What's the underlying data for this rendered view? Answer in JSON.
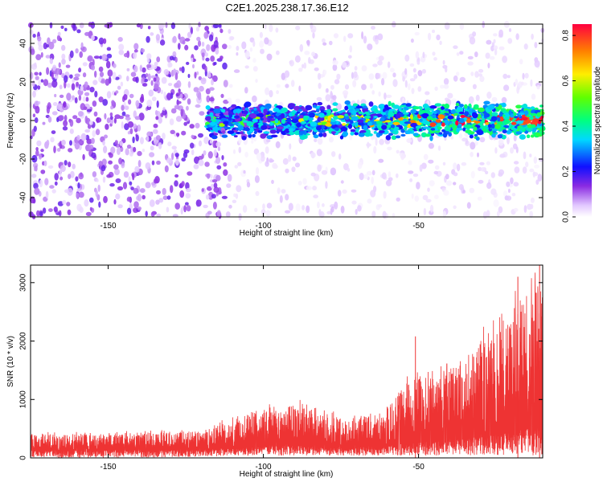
{
  "figure": {
    "title": "C2E1.2025.238.17.36.E12"
  },
  "chart_data": [
    {
      "type": "heatmap",
      "title": "C2E1.2025.238.17.36.E12",
      "xlabel": "Height of straight line (km)",
      "ylabel": "Frequency (Hz)",
      "xlim": [
        -175,
        -10
      ],
      "ylim": [
        -50,
        50
      ],
      "xticks": [
        -150,
        -100,
        -50
      ],
      "yticks": [
        40,
        20,
        0,
        -20,
        -40
      ],
      "colorbar": {
        "label": "Normalized spectral amplitude",
        "range": [
          0,
          0.85
        ],
        "ticks": [
          0.0,
          0.2,
          0.4,
          0.6,
          0.8
        ],
        "colormap": "white-purple-blue-cyan-green-yellow-red"
      },
      "series_summary": [
        {
          "name": "noise region",
          "x_range": [
            -175,
            -112
          ],
          "typical_amplitude": 0.1
        },
        {
          "name": "signal band near 0 Hz",
          "x_range": [
            -118,
            -10
          ],
          "center_freq": 0,
          "half_width_hz": 6,
          "peak_amplitude": 0.85
        }
      ]
    },
    {
      "type": "line",
      "xlabel": "Height of straight line (km)",
      "ylabel": "SNR (10 * v/v)",
      "xlim": [
        -175,
        -10
      ],
      "ylim": [
        0,
        3300
      ],
      "xticks": [
        -150,
        -100,
        -50
      ],
      "yticks": [
        0,
        1000,
        2000,
        3000
      ],
      "color": "#ee3333",
      "envelope": [
        {
          "x": -175,
          "lower": 0,
          "upper": 400
        },
        {
          "x": -150,
          "lower": 0,
          "upper": 420
        },
        {
          "x": -120,
          "lower": 20,
          "upper": 460
        },
        {
          "x": -110,
          "lower": 30,
          "upper": 700
        },
        {
          "x": -100,
          "lower": 40,
          "upper": 850
        },
        {
          "x": -90,
          "lower": 40,
          "upper": 950
        },
        {
          "x": -80,
          "lower": 40,
          "upper": 750
        },
        {
          "x": -70,
          "lower": 40,
          "upper": 700
        },
        {
          "x": -60,
          "lower": 40,
          "upper": 900
        },
        {
          "x": -50,
          "lower": 40,
          "upper": 1500
        },
        {
          "x": -40,
          "lower": 40,
          "upper": 1500
        },
        {
          "x": -30,
          "lower": 40,
          "upper": 2000
        },
        {
          "x": -20,
          "lower": 40,
          "upper": 2700
        },
        {
          "x": -10,
          "lower": 40,
          "upper": 3000
        }
      ],
      "peaks": [
        {
          "x": -51,
          "value": 2080
        },
        {
          "x": -18,
          "value": 3100
        },
        {
          "x": -11,
          "value": 3300
        }
      ]
    }
  ]
}
